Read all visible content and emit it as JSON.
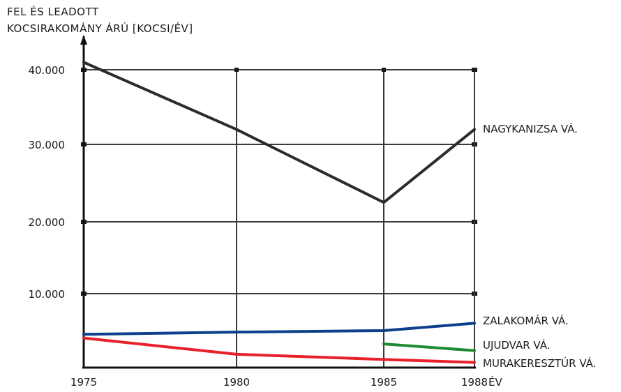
{
  "chart_data": {
    "type": "line",
    "ylabel_lines": [
      "FEL ÉS LEADOTT",
      "KOCSIRAKOMÁNY ÁRÚ [KOCSI/ÉV]"
    ],
    "xlabel": "ÉV",
    "x_ticks": [
      "1975",
      "1980",
      "1985",
      "1988"
    ],
    "y_ticks": [
      "10.000",
      "20.000",
      "30.000",
      "40.000"
    ],
    "y_tick_values": [
      10000,
      20000,
      30000,
      40000
    ],
    "xlim": [
      1975,
      1988
    ],
    "ylim": [
      0,
      41000
    ],
    "grid": true,
    "series": [
      {
        "name": "NAGYKANIZSA VÁ.",
        "color": "#2b2b2b",
        "x": [
          1975,
          1980,
          1985,
          1988
        ],
        "y": [
          41000,
          32000,
          22500,
          32000
        ]
      },
      {
        "name": "ZALAKOMÁR VÁ.",
        "color": "#0d3f8c",
        "x": [
          1975,
          1980,
          1985,
          1988
        ],
        "y": [
          4500,
          4800,
          5000,
          6000
        ]
      },
      {
        "name": "UJUDVAR VÁ.",
        "color": "#1e8c34",
        "x": [
          1985,
          1988
        ],
        "y": [
          3200,
          2300
        ]
      },
      {
        "name": "MURAKERESZTÚR VÁ.",
        "color": "#e8202a",
        "x": [
          1975,
          1980,
          1985,
          1988
        ],
        "y": [
          4000,
          1800,
          1100,
          700
        ]
      }
    ]
  }
}
